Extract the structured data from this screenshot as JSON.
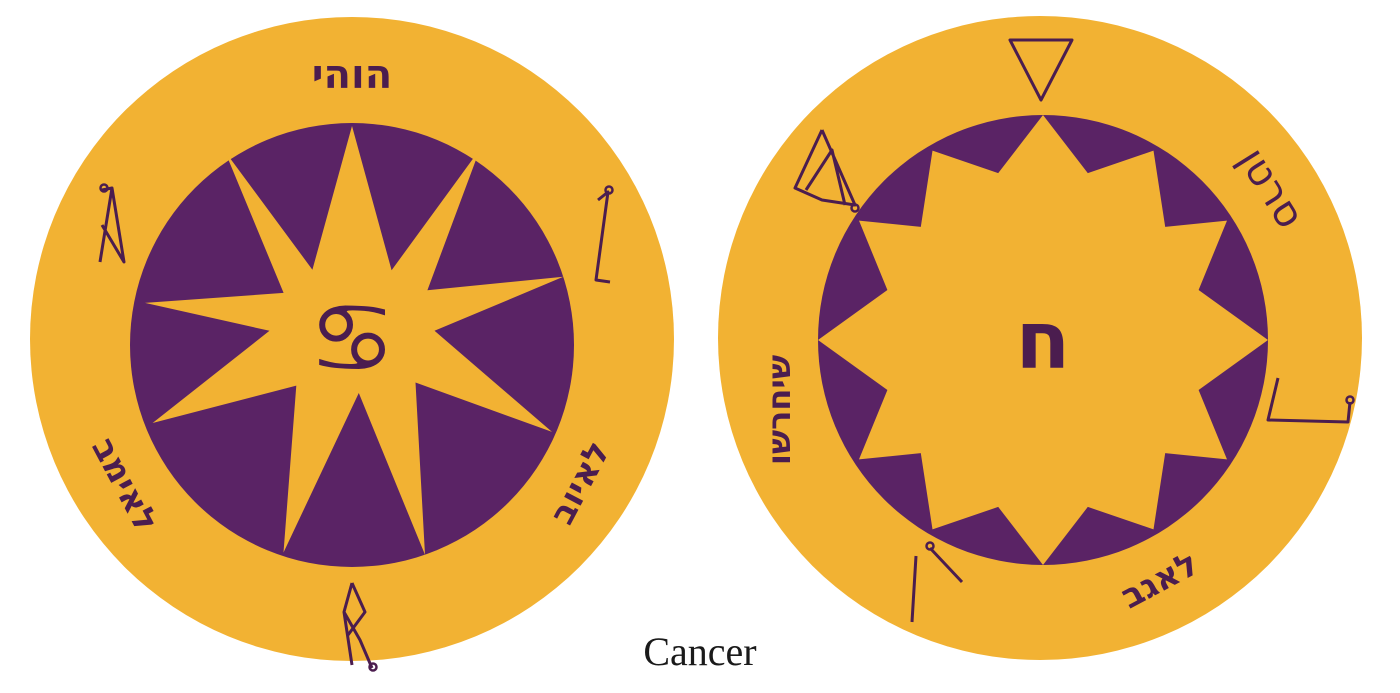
{
  "caption": "Cancer",
  "colors": {
    "gold": "#f2b233",
    "purple": "#5a2365",
    "ink": "#4b1d4f",
    "background": "#ffffff"
  },
  "left_seal": {
    "top_text": "הוהי",
    "center_glyph": "♋",
    "lower_left_text": "לאימב",
    "lower_right_text": "לאיוב",
    "icons": [
      "sigil-upper-left-icon",
      "sigil-upper-right-icon",
      "sigil-bottom-icon"
    ]
  },
  "right_seal": {
    "center_letter": "ח",
    "upper_right_text": "סרטן",
    "left_text": "שיחרשו",
    "lower_right_text": "לאגב",
    "icons": [
      "triangle-water-icon",
      "sigil-upper-left-icon",
      "sigil-right-icon",
      "sigil-lower-left-icon"
    ]
  }
}
